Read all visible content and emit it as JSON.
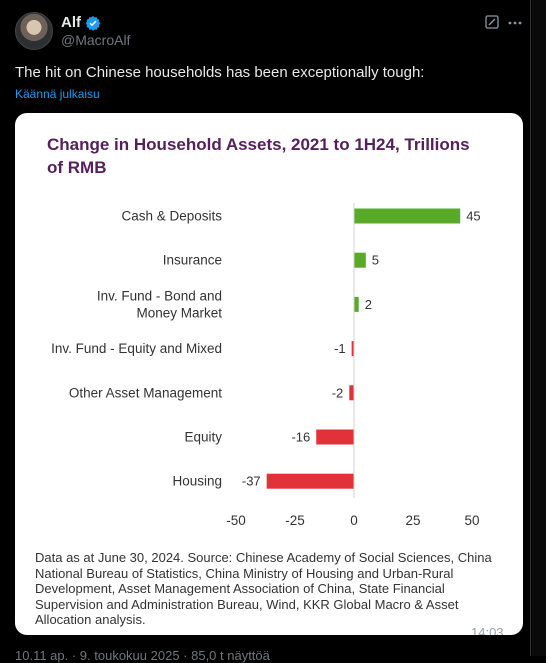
{
  "author": {
    "name": "Alf",
    "handle": "@MacroAlf"
  },
  "tweet": {
    "text": "The hit on Chinese households has been exceptionally tough:",
    "translate_label": "Käännä julkaisu"
  },
  "chart_data": {
    "type": "bar",
    "orientation": "horizontal",
    "title": "Change in Household Assets, 2021 to 1H24, Trillions of RMB",
    "categories": [
      "Cash & Deposits",
      "Insurance",
      "Inv. Fund - Bond and Money Market",
      "Inv. Fund - Equity and Mixed",
      "Other Asset Management",
      "Equity",
      "Housing"
    ],
    "category_lines": [
      [
        "Cash & Deposits"
      ],
      [
        "Insurance"
      ],
      [
        "Inv. Fund - Bond and",
        "Money Market"
      ],
      [
        "Inv. Fund - Equity and Mixed"
      ],
      [
        "Other Asset Management"
      ],
      [
        "Equity"
      ],
      [
        "Housing"
      ]
    ],
    "values": [
      45,
      5,
      2,
      -1,
      -2,
      -16,
      -37
    ],
    "xlim": [
      -50,
      50
    ],
    "xticks": [
      -50,
      -25,
      0,
      25,
      50
    ],
    "positive_color": "#5aaa2a",
    "negative_color": "#e03238",
    "footnote": "Data as at June 30, 2024. Source: Chinese Academy of Social Sciences, China National Bureau of Statistics, China Ministry of Housing and Urban-Rural Development, Asset Management Association of China, State Financial Supervision and Administration Bureau, Wind, KKR Global Macro & Asset Allocation analysis."
  },
  "media": {
    "duration_overlay": "14:03"
  },
  "meta": {
    "text": "10.11 ap. · 9. toukokuu 2025 · 85,0 t näyttöä"
  }
}
